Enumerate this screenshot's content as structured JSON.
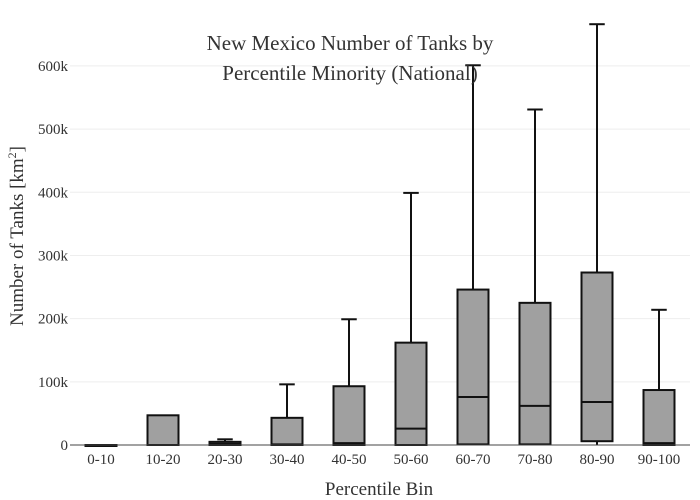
{
  "chart_data": {
    "type": "box",
    "title_lines": [
      "New Mexico Number of Tanks by",
      "Percentile Minority (National)"
    ],
    "xlabel": "Percentile Bin",
    "ylabel_main": "Number of Tanks  [km",
    "ylabel_sup": "2",
    "ylabel_end": "]",
    "ylim": [
      0,
      660000
    ],
    "yticks": [
      0,
      100000,
      200000,
      300000,
      400000,
      500000,
      600000
    ],
    "ytick_labels": [
      "0",
      "100k",
      "200k",
      "300k",
      "400k",
      "500k",
      "600k"
    ],
    "grid": true,
    "box_color": "#a0a0a0",
    "categories": [
      "0-10",
      "10-20",
      "20-30",
      "30-40",
      "40-50",
      "50-60",
      "60-70",
      "70-80",
      "80-90",
      "90-100"
    ],
    "boxes": [
      {
        "min": 0,
        "q1": 0,
        "median": 0,
        "q3": 0,
        "max": 0
      },
      {
        "min": 0,
        "q1": 0,
        "median": 0,
        "q3": 47000,
        "max": 47000
      },
      {
        "min": 0,
        "q1": 0,
        "median": 2000,
        "q3": 5000,
        "max": 9000
      },
      {
        "min": 0,
        "q1": 0,
        "median": 1000,
        "q3": 43000,
        "max": 96000
      },
      {
        "min": 0,
        "q1": 0,
        "median": 3000,
        "q3": 93000,
        "max": 199000
      },
      {
        "min": 0,
        "q1": 0,
        "median": 26000,
        "q3": 162000,
        "max": 399000
      },
      {
        "min": 0,
        "q1": 1000,
        "median": 76000,
        "q3": 246000,
        "max": 601000
      },
      {
        "min": 0,
        "q1": 1000,
        "median": 62000,
        "q3": 225000,
        "max": 531000
      },
      {
        "min": 0,
        "q1": 6000,
        "median": 68000,
        "q3": 273000,
        "max": 666000
      },
      {
        "min": 0,
        "q1": 0,
        "median": 3000,
        "q3": 87000,
        "max": 214000
      }
    ]
  }
}
